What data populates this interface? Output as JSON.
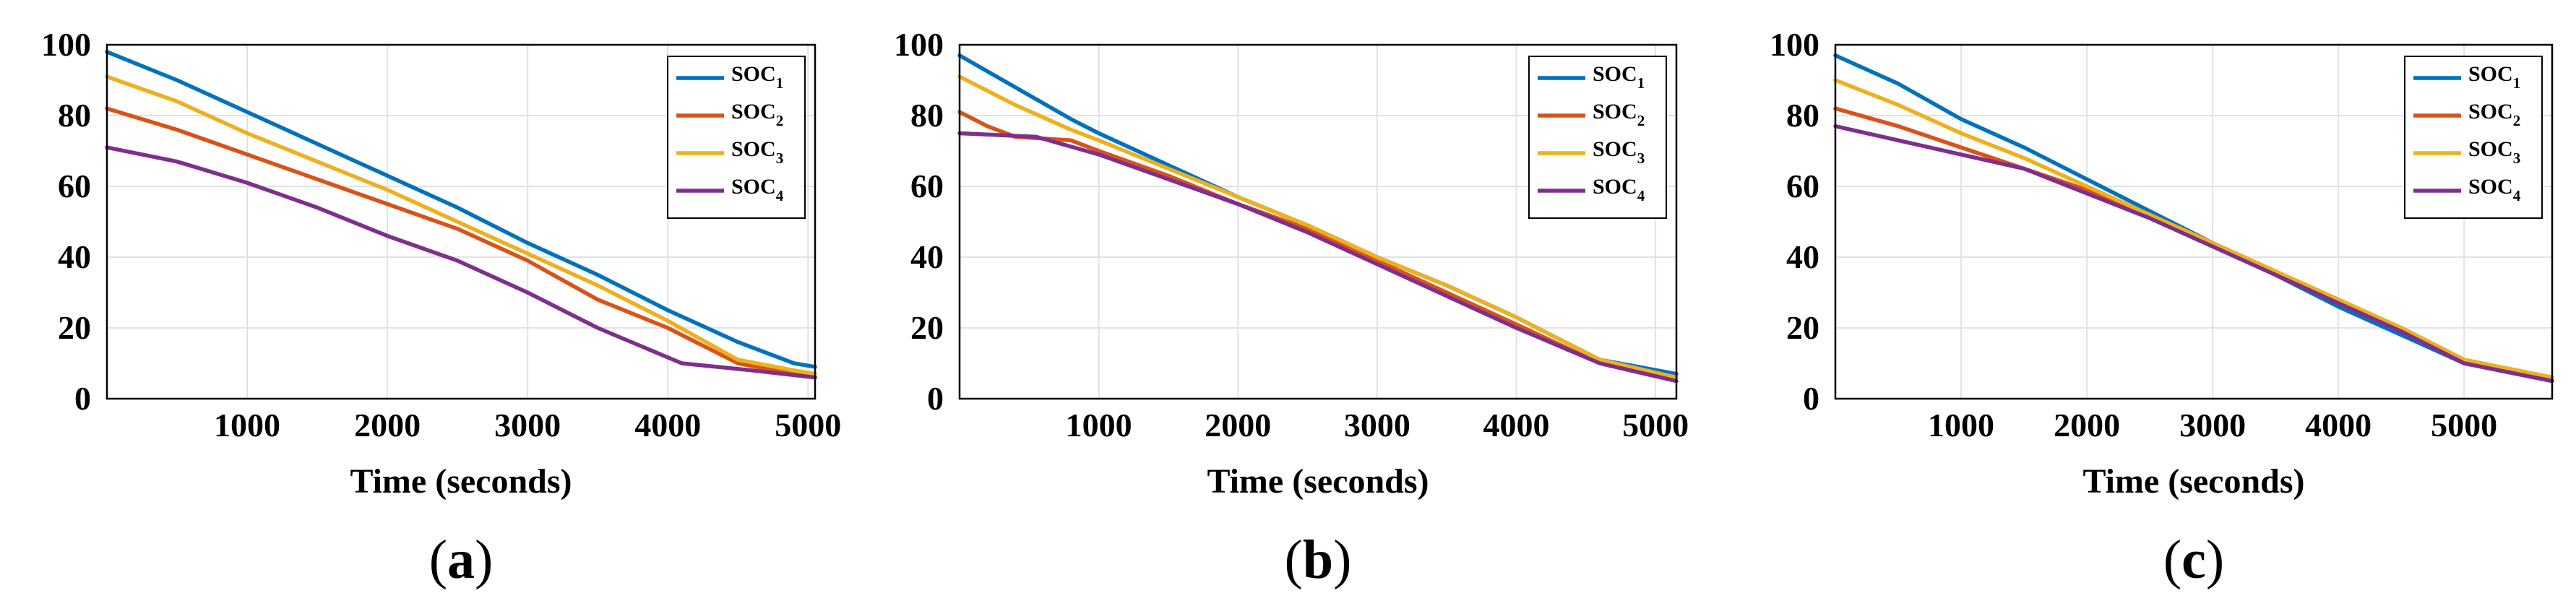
{
  "chart_data": [
    {
      "type": "line",
      "panel_label": "a",
      "xlabel": "Time (seconds)",
      "ylabel": "",
      "xlim": [
        0,
        5050
      ],
      "ylim": [
        0,
        100
      ],
      "xticks": [
        1000,
        2000,
        3000,
        4000,
        5000
      ],
      "yticks": [
        0,
        20,
        40,
        60,
        80,
        100
      ],
      "grid": true,
      "legend_position": "top-right",
      "series": [
        {
          "name": "SOC",
          "subscript": "1",
          "color": "#0072BD",
          "x": [
            0,
            500,
            1000,
            1500,
            2000,
            2500,
            3000,
            3500,
            4000,
            4500,
            4900,
            5050
          ],
          "y": [
            98,
            90,
            81,
            72,
            63,
            54,
            44,
            35,
            25,
            16,
            10,
            9
          ]
        },
        {
          "name": "SOC",
          "subscript": "2",
          "color": "#D95319",
          "x": [
            0,
            500,
            1000,
            1500,
            2000,
            2500,
            3000,
            3500,
            4000,
            4500,
            4900,
            5050
          ],
          "y": [
            82,
            76,
            69,
            62,
            55,
            48,
            39,
            28,
            20,
            10,
            7,
            6
          ]
        },
        {
          "name": "SOC",
          "subscript": "3",
          "color": "#EDB120",
          "x": [
            0,
            500,
            1000,
            1500,
            2000,
            2500,
            3000,
            3500,
            4000,
            4500,
            4900,
            5050
          ],
          "y": [
            91,
            84,
            75,
            67,
            59,
            50,
            41,
            32,
            22,
            11,
            8,
            7
          ]
        },
        {
          "name": "SOC",
          "subscript": "4",
          "color": "#7E2F8E",
          "x": [
            0,
            500,
            1000,
            1500,
            2000,
            2500,
            3000,
            3500,
            3800,
            4100,
            4600,
            5050
          ],
          "y": [
            71,
            67,
            61,
            54,
            46,
            39,
            30,
            20,
            15,
            10,
            8,
            6
          ]
        }
      ]
    },
    {
      "type": "line",
      "panel_label": "b",
      "xlabel": "Time (seconds)",
      "ylabel": "",
      "xlim": [
        0,
        5150
      ],
      "ylim": [
        0,
        100
      ],
      "xticks": [
        1000,
        2000,
        3000,
        4000,
        5000
      ],
      "yticks": [
        0,
        20,
        40,
        60,
        80,
        100
      ],
      "grid": true,
      "legend_position": "top-right",
      "series": [
        {
          "name": "SOC",
          "subscript": "1",
          "color": "#0072BD",
          "x": [
            0,
            400,
            800,
            1000,
            1500,
            2000,
            2500,
            3000,
            3500,
            4000,
            4600,
            5150
          ],
          "y": [
            97,
            88,
            79,
            75,
            66,
            57,
            49,
            40,
            32,
            23,
            11,
            7
          ]
        },
        {
          "name": "SOC",
          "subscript": "2",
          "color": "#D95319",
          "x": [
            0,
            200,
            400,
            800,
            1000,
            1500,
            2000,
            2500,
            3000,
            3500,
            4000,
            4600,
            5150
          ],
          "y": [
            81,
            77,
            74,
            73,
            70,
            63,
            55,
            48,
            39,
            30,
            21,
            10,
            5
          ]
        },
        {
          "name": "SOC",
          "subscript": "3",
          "color": "#EDB120",
          "x": [
            0,
            400,
            800,
            1000,
            1500,
            2000,
            2500,
            3000,
            3500,
            4000,
            4600,
            5150
          ],
          "y": [
            91,
            83,
            76,
            73,
            65,
            57,
            49,
            40,
            32,
            23,
            11,
            6
          ]
        },
        {
          "name": "SOC",
          "subscript": "4",
          "color": "#7E2F8E",
          "x": [
            0,
            550,
            1000,
            1500,
            2000,
            2500,
            3000,
            3500,
            4000,
            4600,
            5150
          ],
          "y": [
            75,
            74,
            69,
            62,
            55,
            47,
            38,
            29,
            20,
            10,
            5
          ]
        }
      ]
    },
    {
      "type": "line",
      "panel_label": "c",
      "xlabel": "Time (seconds)",
      "ylabel": "",
      "xlim": [
        0,
        5700
      ],
      "ylim": [
        0,
        100
      ],
      "xticks": [
        1000,
        2000,
        3000,
        4000,
        5000
      ],
      "yticks": [
        0,
        20,
        40,
        60,
        80,
        100
      ],
      "grid": true,
      "legend_position": "top-right",
      "series": [
        {
          "name": "SOC",
          "subscript": "1",
          "color": "#0072BD",
          "x": [
            0,
            500,
            1000,
            1500,
            2000,
            2500,
            3000,
            3500,
            4000,
            4500,
            5000,
            5700
          ],
          "y": [
            97,
            89,
            79,
            71,
            62,
            53,
            44,
            35,
            26,
            18,
            10,
            5
          ]
        },
        {
          "name": "SOC",
          "subscript": "2",
          "color": "#D95319",
          "x": [
            0,
            500,
            1000,
            1500,
            2000,
            2500,
            3000,
            3500,
            4000,
            4500,
            5000,
            5700
          ],
          "y": [
            82,
            77,
            71,
            65,
            59,
            52,
            44,
            36,
            28,
            20,
            11,
            6
          ]
        },
        {
          "name": "SOC",
          "subscript": "3",
          "color": "#EDB120",
          "x": [
            0,
            500,
            1000,
            1500,
            2000,
            2500,
            3000,
            3500,
            4000,
            4500,
            5000,
            5700
          ],
          "y": [
            90,
            83,
            75,
            68,
            60,
            52,
            44,
            36,
            28,
            20,
            11,
            6
          ]
        },
        {
          "name": "SOC",
          "subscript": "4",
          "color": "#7E2F8E",
          "x": [
            0,
            500,
            1000,
            1500,
            2000,
            2500,
            3000,
            3500,
            4000,
            4500,
            5000,
            5700
          ],
          "y": [
            77,
            73,
            69,
            65,
            58,
            51,
            43,
            35,
            27,
            19,
            10,
            5
          ]
        }
      ]
    }
  ]
}
